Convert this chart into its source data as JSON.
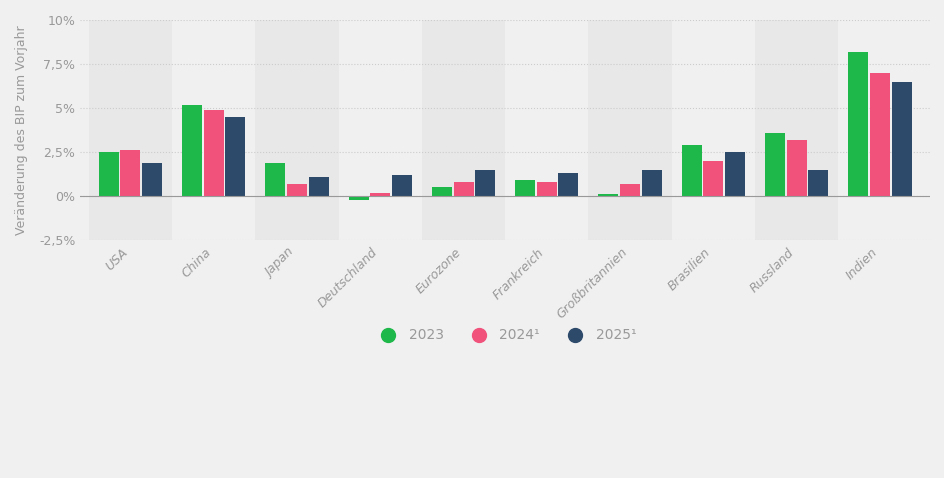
{
  "categories": [
    "USA",
    "China",
    "Japan",
    "Deutschland",
    "Eurozone",
    "Frankreich",
    "Großbritannien",
    "Brasilien",
    "Russland",
    "Indien"
  ],
  "values_2023": [
    2.5,
    5.2,
    1.9,
    -0.2,
    0.5,
    0.9,
    0.1,
    2.9,
    3.6,
    8.2
  ],
  "values_2024": [
    2.6,
    4.9,
    0.7,
    0.2,
    0.8,
    0.8,
    0.7,
    2.0,
    3.2,
    7.0
  ],
  "values_2025": [
    1.9,
    4.5,
    1.1,
    1.2,
    1.5,
    1.3,
    1.5,
    2.5,
    1.5,
    6.5
  ],
  "color_2023": "#1eb84a",
  "color_2024": "#f0527c",
  "color_2025": "#2e4a6b",
  "ylabel": "Veränderung des BIP zum Vorjahr",
  "legend_2023": "2023",
  "legend_2024": "2024¹",
  "legend_2025": "2025¹",
  "ylim": [
    -2.5,
    10.0
  ],
  "yticks": [
    -2.5,
    0.0,
    2.5,
    5.0,
    7.5,
    10.0
  ],
  "ytick_labels": [
    "-2,5%",
    "0%",
    "2,5%",
    "5%",
    "7,5%",
    "10%"
  ],
  "bg_color": "#f0f0f0",
  "band_color_dark": "#e8e8e8",
  "band_color_light": "#f0f0f0",
  "grid_color": "#cccccc",
  "text_color": "#999999"
}
